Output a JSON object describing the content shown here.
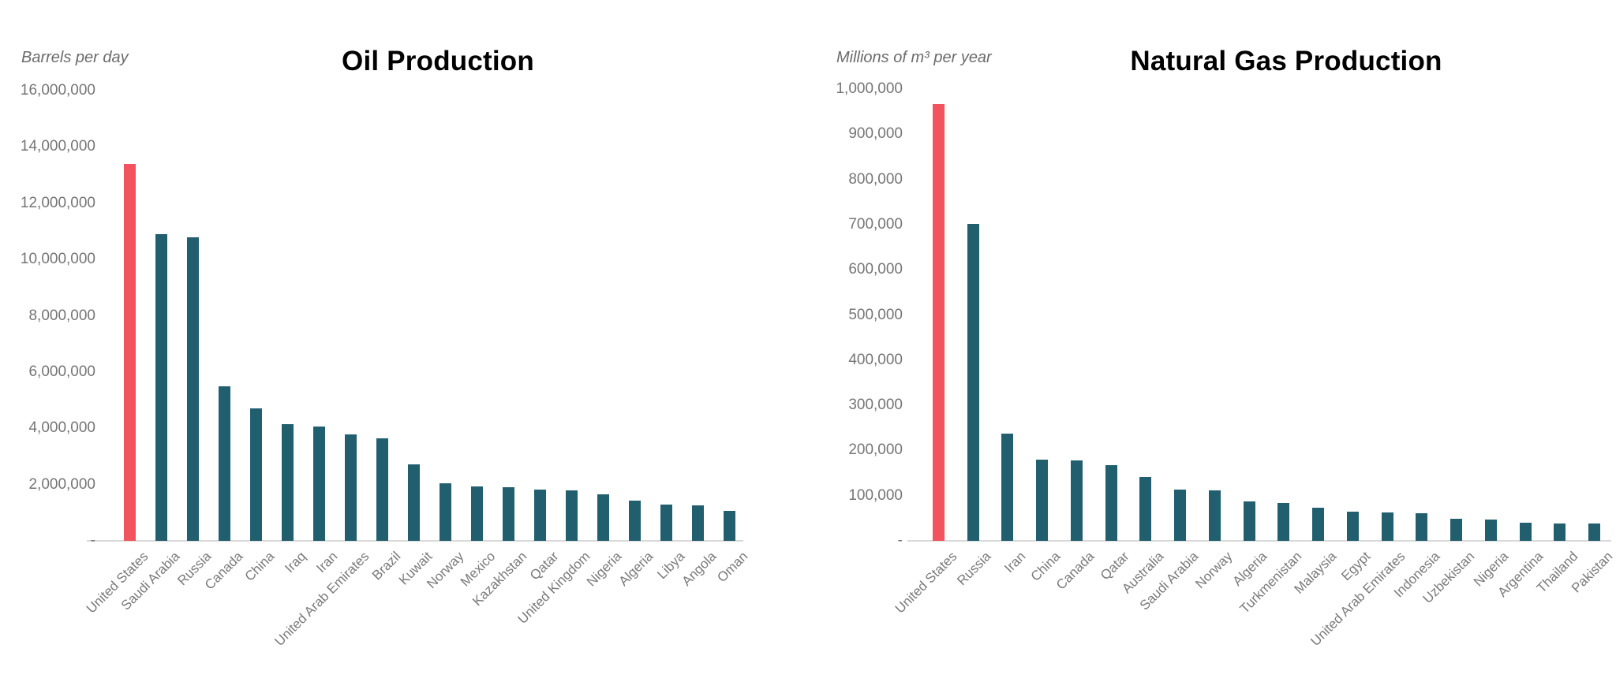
{
  "chart_data": [
    {
      "type": "bar",
      "title": "Oil Production",
      "ylabel": "Barrels per day",
      "xlabel": "",
      "ylim": [
        0,
        16000000
      ],
      "grid": false,
      "legend": "none",
      "highlight_color": "#f3535e",
      "bar_color": "#215f6f",
      "highlight_index": 0,
      "categories": [
        "United States",
        "Saudi Arabia",
        "Russia",
        "Canada",
        "China",
        "Iraq",
        "Iran",
        "United Arab Emirates",
        "Brazil",
        "Kuwait",
        "Norway",
        "Mexico",
        "Kazakhstan",
        "Qatar",
        "United Kingdom",
        "Nigeria",
        "Algeria",
        "Libya",
        "Angola",
        "Oman"
      ],
      "values": [
        13400000,
        10900000,
        10800000,
        5500000,
        4700000,
        4150000,
        4060000,
        3770000,
        3630000,
        2720000,
        2040000,
        1920000,
        1910000,
        1830000,
        1800000,
        1660000,
        1430000,
        1280000,
        1250000,
        1060000
      ],
      "yticks": [
        {
          "value": 16000000,
          "label": "16,000,000"
        },
        {
          "value": 14000000,
          "label": "14,000,000"
        },
        {
          "value": 12000000,
          "label": "12,000,000"
        },
        {
          "value": 10000000,
          "label": "10,000,000"
        },
        {
          "value": 8000000,
          "label": "8,000,000"
        },
        {
          "value": 6000000,
          "label": "6,000,000"
        },
        {
          "value": 4000000,
          "label": "4,000,000"
        },
        {
          "value": 2000000,
          "label": "2,000,000"
        },
        {
          "value": 0,
          "label": "-"
        }
      ]
    },
    {
      "type": "bar",
      "title": "Natural Gas Production",
      "ylabel": "Millions of m³ per year",
      "xlabel": "",
      "ylim": [
        0,
        1000000
      ],
      "grid": false,
      "legend": "none",
      "highlight_color": "#f3535e",
      "bar_color": "#215f6f",
      "highlight_index": 0,
      "categories": [
        "United States",
        "Russia",
        "Iran",
        "China",
        "Canada",
        "Qatar",
        "Australia",
        "Saudi Arabia",
        "Norway",
        "Algeria",
        "Turkmenistan",
        "Malaysia",
        "Egypt",
        "United Arab Emirates",
        "Indonesia",
        "Uzbekistan",
        "Nigeria",
        "Argentina",
        "Thailand",
        "Pakistan"
      ],
      "values": [
        967000,
        701000,
        238000,
        179000,
        178000,
        167000,
        142000,
        113000,
        111000,
        88000,
        83000,
        74000,
        65000,
        62000,
        61000,
        49000,
        47000,
        41000,
        38500,
        38000
      ],
      "yticks": [
        {
          "value": 1000000,
          "label": "1,000,000"
        },
        {
          "value": 900000,
          "label": "900,000"
        },
        {
          "value": 800000,
          "label": "800,000"
        },
        {
          "value": 700000,
          "label": "700,000"
        },
        {
          "value": 600000,
          "label": "600,000"
        },
        {
          "value": 500000,
          "label": "500,000"
        },
        {
          "value": 400000,
          "label": "400,000"
        },
        {
          "value": 300000,
          "label": "300,000"
        },
        {
          "value": 200000,
          "label": "200,000"
        },
        {
          "value": 100000,
          "label": "100,000"
        },
        {
          "value": 0,
          "label": "-"
        }
      ]
    }
  ]
}
